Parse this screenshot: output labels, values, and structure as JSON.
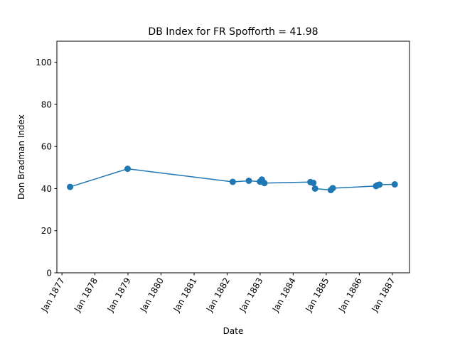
{
  "chart_data": {
    "type": "line",
    "title": "DB Index for FR Spofforth = 41.98",
    "xlabel": "Date",
    "ylabel": "Don Bradman Index",
    "xlim": [
      "1876-11-06",
      "1887-07-10"
    ],
    "ylim": [
      0,
      110
    ],
    "xticks": [
      {
        "date": "1877-01-01",
        "label": "Jan 1877"
      },
      {
        "date": "1878-01-01",
        "label": "Jan 1878"
      },
      {
        "date": "1879-01-01",
        "label": "Jan 1879"
      },
      {
        "date": "1880-01-01",
        "label": "Jan 1880"
      },
      {
        "date": "1881-01-01",
        "label": "Jan 1881"
      },
      {
        "date": "1882-01-01",
        "label": "Jan 1882"
      },
      {
        "date": "1883-01-01",
        "label": "Jan 1883"
      },
      {
        "date": "1884-01-01",
        "label": "Jan 1884"
      },
      {
        "date": "1885-01-01",
        "label": "Jan 1885"
      },
      {
        "date": "1886-01-01",
        "label": "Jan 1886"
      },
      {
        "date": "1887-01-01",
        "label": "Jan 1887"
      }
    ],
    "yticks": [
      0,
      20,
      40,
      60,
      80,
      100
    ],
    "grid": false,
    "series": [
      {
        "color": "#1f77b4",
        "points": [
          {
            "x": "1877-04-01",
            "y": 40.8
          },
          {
            "x": "1878-12-28",
            "y": 49.4
          },
          {
            "x": "1882-03-04",
            "y": 43.2
          },
          {
            "x": "1882-08-29",
            "y": 43.7
          },
          {
            "x": "1882-12-30",
            "y": 43.3
          },
          {
            "x": "1883-01-20",
            "y": 44.3
          },
          {
            "x": "1883-02-17",
            "y": 42.6
          },
          {
            "x": "1884-07-10",
            "y": 43.1
          },
          {
            "x": "1884-08-11",
            "y": 42.7
          },
          {
            "x": "1884-08-30",
            "y": 40.0
          },
          {
            "x": "1885-02-20",
            "y": 39.3
          },
          {
            "x": "1885-03-14",
            "y": 40.2
          },
          {
            "x": "1886-07-05",
            "y": 41.2
          },
          {
            "x": "1886-07-19",
            "y": 41.6
          },
          {
            "x": "1886-08-12",
            "y": 41.9
          },
          {
            "x": "1887-01-28",
            "y": 42.0
          }
        ]
      }
    ]
  }
}
